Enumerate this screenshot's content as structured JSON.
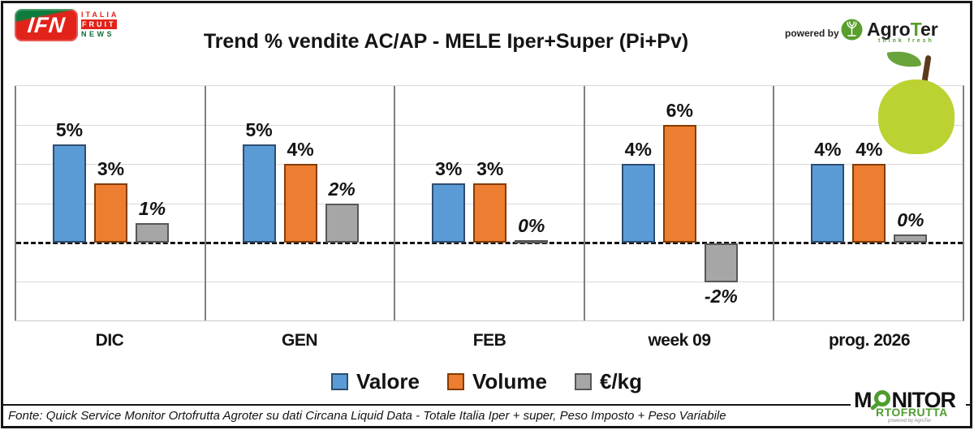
{
  "header": {
    "title": "Trend % vendite AC/AP - MELE  Iper+Super (Pi+Pv)",
    "powered_by": "powered by",
    "agroter_name_pre": "Agro",
    "agroter_name_t": "T",
    "agroter_name_post": "er",
    "agroter_tagline": "think fresh",
    "ifn": {
      "abbr": "IFN",
      "line1": "ITALIA",
      "line2": "FRUIT",
      "line3": "NEWS"
    }
  },
  "chart_data": {
    "type": "bar",
    "title": "Trend % vendite AC/AP - MELE Iper+Super (Pi+Pv)",
    "categories": [
      "DIC",
      "GEN",
      "FEB",
      "week 09",
      "prog. 2026"
    ],
    "series": [
      {
        "name": "Valore",
        "color": "#5B9BD5",
        "border": "#2E4D71",
        "italic": false,
        "values": [
          5,
          5,
          3,
          4,
          4
        ],
        "labels": [
          "5%",
          "5%",
          "3%",
          "4%",
          "4%"
        ]
      },
      {
        "name": "Volume",
        "color": "#ED7D31",
        "border": "#833C00",
        "italic": false,
        "values": [
          3,
          4,
          3,
          6,
          4
        ],
        "labels": [
          "3%",
          "4%",
          "3%",
          "6%",
          "4%"
        ]
      },
      {
        "name": "€/kg",
        "color": "#A6A6A6",
        "border": "#575757",
        "italic": true,
        "values": [
          1,
          2,
          0.1,
          -2,
          0.4
        ],
        "labels": [
          "1%",
          "2%",
          "0%",
          "-2%",
          "0%"
        ]
      }
    ],
    "ylabel": "",
    "xlabel": "",
    "axis": {
      "min": -4,
      "max": 8,
      "gridline_step": 2,
      "unit": "%",
      "zero_line": "dashed-black"
    },
    "grid": true,
    "legend_position": "bottom"
  },
  "footer": {
    "source": "Fonte: Quick Service Monitor Ortofrutta Agroter su dati Circana Liquid Data - Totale Italia Iper + super, Peso Imposto + Peso Variabile"
  },
  "monitor_logo": {
    "line1_pre": "M",
    "line1_post": "NITOR",
    "line2": "RTOFRUTTA",
    "line3": "powered by AgroTer"
  }
}
